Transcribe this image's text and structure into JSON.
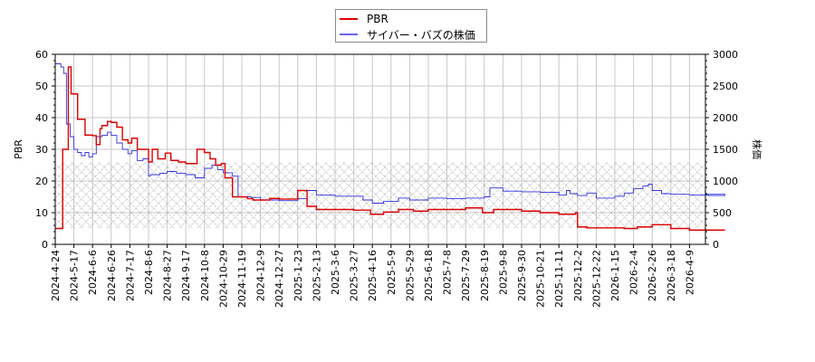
{
  "chart_data": {
    "type": "line",
    "title": "",
    "legend": {
      "position": "top-center",
      "entries": [
        {
          "label": "PBR",
          "color": "#dd0000"
        },
        {
          "label": "サイバー・バズの株価",
          "color": "#3333dd"
        }
      ]
    },
    "xlabel": "",
    "ylabel_left": "PBR",
    "ylabel_right": "株価",
    "ylim_left": [
      0,
      60
    ],
    "ylim_right": [
      0,
      3000
    ],
    "yticks_left": [
      0,
      10,
      20,
      30,
      40,
      50,
      60
    ],
    "yticks_right": [
      0,
      500,
      1000,
      1500,
      2000,
      2500,
      3000
    ],
    "grid": true,
    "x_tick_labels": [
      "2024-4-24",
      "2024-5-17",
      "2024-6-6",
      "2024-6-26",
      "2024-7-17",
      "2024-8-6",
      "2024-8-27",
      "2024-9-17",
      "2024-10-8",
      "2024-10-29",
      "2024-11-19",
      "2024-12-9",
      "2024-12-27",
      "2025-1-23",
      "2025-2-13",
      "2025-3-6",
      "2025-3-27",
      "2025-4-16",
      "2025-5-9",
      "2025-5-29",
      "2025-6-18",
      "2025-7-8",
      "2025-7-29",
      "2025-8-19",
      "2025-9-8",
      "2025-9-30",
      "2025-10-21",
      "2025-11-11",
      "2025-12-2",
      "2025-12-22",
      "2026-1-15",
      "2026-2-4",
      "2026-2-26",
      "2026-3-18",
      "2026-4-9"
    ],
    "shaded_band": {
      "y_left_from": 5,
      "y_left_to": 26,
      "pattern": "crosshatch"
    },
    "series": [
      {
        "name": "PBR",
        "axis": "left",
        "color": "#dd0000",
        "x_index": [
          0,
          0.35,
          0.4,
          0.7,
          0.75,
          0.85,
          1.2,
          1.6,
          2.0,
          2.2,
          2.4,
          2.5,
          2.8,
          3.0,
          3.3,
          3.6,
          3.9,
          4.1,
          4.4,
          4.7,
          5.0,
          5.2,
          5.5,
          5.9,
          6.2,
          6.6,
          7.0,
          7.6,
          8.0,
          8.3,
          8.6,
          8.9,
          9.1,
          9.5,
          10.0,
          10.3,
          10.6,
          11.0,
          11.5,
          12.0,
          13.0,
          13.5,
          14.0,
          14.4,
          15.0,
          16.0,
          16.9,
          17.6,
          18.4,
          19.2,
          20.0,
          21.0,
          22.0,
          22.9,
          23.5,
          24.0,
          25.0,
          26.0,
          27.0,
          27.9,
          28.0,
          28.5,
          29.5,
          30.5,
          31.2,
          32.0,
          33.0,
          34.0,
          35.9
        ],
        "values": [
          5,
          5,
          30,
          56,
          56,
          47.5,
          39.5,
          34.5,
          34.3,
          31.5,
          36.5,
          37.5,
          38.8,
          38.5,
          37,
          33,
          32,
          33.5,
          30,
          30,
          26,
          30,
          27,
          28.8,
          26.5,
          26,
          25.5,
          30,
          29,
          27,
          25,
          25.5,
          21,
          15,
          15,
          14.4,
          14,
          14,
          14.5,
          14.3,
          17,
          12,
          11,
          11,
          11,
          10.8,
          9.5,
          10.2,
          11,
          10.5,
          11,
          11,
          11.5,
          10,
          11,
          11,
          10.5,
          10,
          9.5,
          10,
          5.5,
          5.2,
          5.2,
          5,
          5.5,
          6.2,
          5,
          4.5,
          4.5
        ]
      },
      {
        "name": "サイバー・バズの株価",
        "axis": "right",
        "color": "#3333dd",
        "x_index": [
          0,
          0.3,
          0.45,
          0.6,
          0.8,
          1.0,
          1.2,
          1.4,
          1.6,
          1.8,
          2.0,
          2.2,
          2.5,
          2.8,
          3.0,
          3.3,
          3.6,
          3.9,
          4.1,
          4.4,
          4.7,
          5.0,
          5.1,
          5.3,
          5.6,
          6.0,
          6.5,
          7.0,
          7.5,
          8.0,
          8.4,
          8.7,
          9.0,
          9.5,
          9.8,
          10.0,
          10.5,
          11.0,
          12.0,
          13.0,
          13.5,
          14.0,
          15.0,
          16.0,
          16.5,
          17.0,
          17.6,
          18.4,
          19.0,
          20.0,
          21.0,
          22.0,
          23.0,
          23.3,
          24.0,
          25.0,
          26.0,
          27.0,
          27.4,
          27.6,
          28.0,
          28.5,
          29.0,
          30.0,
          30.5,
          31.0,
          31.5,
          31.8,
          32.0,
          32.5,
          33.0,
          34.0,
          35.0,
          35.9
        ],
        "values": [
          2850,
          2800,
          2700,
          1900,
          1700,
          1500,
          1450,
          1400,
          1450,
          1380,
          1430,
          1700,
          1720,
          1770,
          1720,
          1600,
          1500,
          1430,
          1480,
          1320,
          1350,
          1080,
          1100,
          1100,
          1120,
          1150,
          1120,
          1100,
          1050,
          1200,
          1250,
          1180,
          1130,
          1080,
          750,
          750,
          740,
          700,
          690,
          720,
          850,
          780,
          760,
          760,
          700,
          650,
          680,
          730,
          700,
          730,
          720,
          730,
          750,
          890,
          840,
          830,
          820,
          780,
          850,
          800,
          770,
          810,
          730,
          760,
          810,
          880,
          920,
          950,
          850,
          800,
          790,
          780,
          770,
          790
        ]
      }
    ]
  }
}
